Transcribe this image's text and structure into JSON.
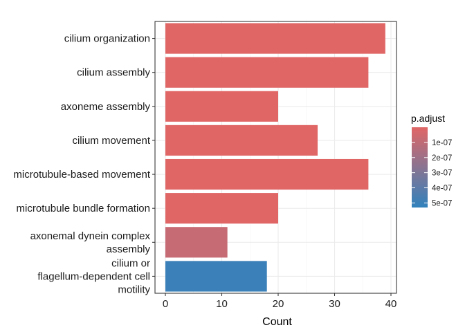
{
  "chart_data": {
    "type": "bar",
    "orientation": "horizontal",
    "xlabel": "Count",
    "ylabel": "",
    "xlim": [
      0,
      40
    ],
    "x_ticks": [
      0,
      10,
      20,
      30,
      40
    ],
    "grid": true,
    "legend_position": "right",
    "categories": [
      [
        "cilium organization"
      ],
      [
        "cilium assembly"
      ],
      [
        "axoneme assembly"
      ],
      [
        "cilium movement"
      ],
      [
        "microtubule-based movement"
      ],
      [
        "microtubule bundle formation"
      ],
      [
        "axonemal dynein complex",
        "assembly"
      ],
      [
        "cilium or",
        "flagellum-dependent cell",
        "motility"
      ]
    ],
    "values": [
      39,
      36,
      20,
      27,
      36,
      20,
      11,
      18
    ],
    "p_adjust": [
      1e-10,
      1e-10,
      1e-10,
      1e-10,
      1e-10,
      1e-10,
      8e-08,
      5e-07
    ],
    "color_scale": {
      "title": "p.adjust",
      "low_color": "#E06666",
      "high_color": "#3182BD",
      "range": [
        0,
        5.3e-07
      ],
      "breaks": [
        1e-07,
        2e-07,
        3e-07,
        4e-07,
        5e-07
      ],
      "labels": [
        "1e-07",
        "2e-07",
        "3e-07",
        "4e-07",
        "5e-07"
      ]
    }
  }
}
